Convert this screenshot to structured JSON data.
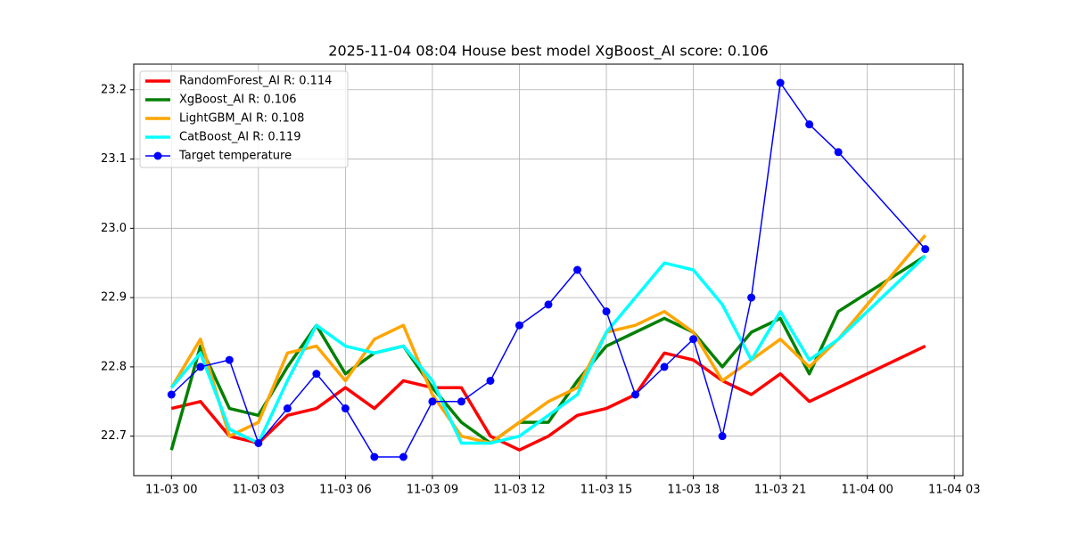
{
  "chart_data": {
    "type": "line",
    "title": "2025-11-04 08:04 House best model XgBoost_AI score: 0.106",
    "x": [
      "11-03 00",
      "11-03 01",
      "11-03 02",
      "11-03 03",
      "11-03 04",
      "11-03 05",
      "11-03 06",
      "11-03 07",
      "11-03 08",
      "11-03 09",
      "11-03 10",
      "11-03 11",
      "11-03 12",
      "11-03 13",
      "11-03 14",
      "11-03 15",
      "11-03 16",
      "11-03 17",
      "11-03 18",
      "11-03 19",
      "11-03 20",
      "11-03 21",
      "11-03 22",
      "11-03 23",
      "11-04 02"
    ],
    "series": [
      {
        "name": "RandomForest_AI R: 0.114",
        "color": "#ff0000",
        "values": [
          22.74,
          22.75,
          22.7,
          22.69,
          22.73,
          22.74,
          22.77,
          22.74,
          22.78,
          22.77,
          22.77,
          22.7,
          22.68,
          22.7,
          22.73,
          22.74,
          22.76,
          22.82,
          22.81,
          22.78,
          22.76,
          22.79,
          22.75,
          22.77,
          22.83
        ]
      },
      {
        "name": "XgBoost_AI R: 0.106",
        "color": "#008000",
        "values": [
          22.68,
          22.83,
          22.74,
          22.73,
          22.8,
          22.86,
          22.79,
          22.82,
          22.83,
          22.77,
          22.72,
          22.69,
          22.72,
          22.72,
          22.78,
          22.83,
          22.85,
          22.87,
          22.85,
          22.8,
          22.85,
          22.87,
          22.79,
          22.88,
          22.96
        ]
      },
      {
        "name": "LightGBM_AI R: 0.108",
        "color": "#ffa500",
        "values": [
          22.77,
          22.84,
          22.7,
          22.72,
          22.82,
          22.83,
          22.78,
          22.84,
          22.86,
          22.76,
          22.7,
          22.69,
          22.72,
          22.75,
          22.77,
          22.85,
          22.86,
          22.88,
          22.85,
          22.78,
          22.81,
          22.84,
          22.8,
          22.84,
          22.99
        ]
      },
      {
        "name": "CatBoost_AI R: 0.119",
        "color": "#00ffff",
        "values": [
          22.77,
          22.82,
          22.71,
          22.69,
          22.78,
          22.86,
          22.83,
          22.82,
          22.83,
          22.78,
          22.69,
          22.69,
          22.7,
          22.73,
          22.76,
          22.85,
          22.9,
          22.95,
          22.94,
          22.89,
          22.81,
          22.88,
          22.81,
          22.84,
          22.96
        ]
      },
      {
        "name": "Target temperature",
        "color": "#0000ff",
        "marker": "o",
        "values": [
          22.76,
          22.8,
          22.81,
          22.69,
          22.74,
          22.79,
          22.74,
          22.67,
          22.67,
          22.75,
          22.75,
          22.78,
          22.86,
          22.89,
          22.94,
          22.88,
          22.76,
          22.8,
          22.84,
          22.7,
          22.9,
          23.21,
          23.15,
          23.11,
          22.97
        ]
      }
    ],
    "xlim": [
      "11-02 22:42",
      "11-04 03:18"
    ],
    "xticks": [
      "11-03 00",
      "11-03 03",
      "11-03 06",
      "11-03 09",
      "11-03 12",
      "11-03 15",
      "11-03 18",
      "11-03 21",
      "11-04 00",
      "11-04 03"
    ],
    "ylim": [
      22.643,
      23.237
    ],
    "yticks": [
      22.7,
      22.8,
      22.9,
      {
        "value": 23,
        "label": "23.0"
      },
      23.1,
      23.2
    ],
    "grid": true,
    "legend": "upper left"
  }
}
